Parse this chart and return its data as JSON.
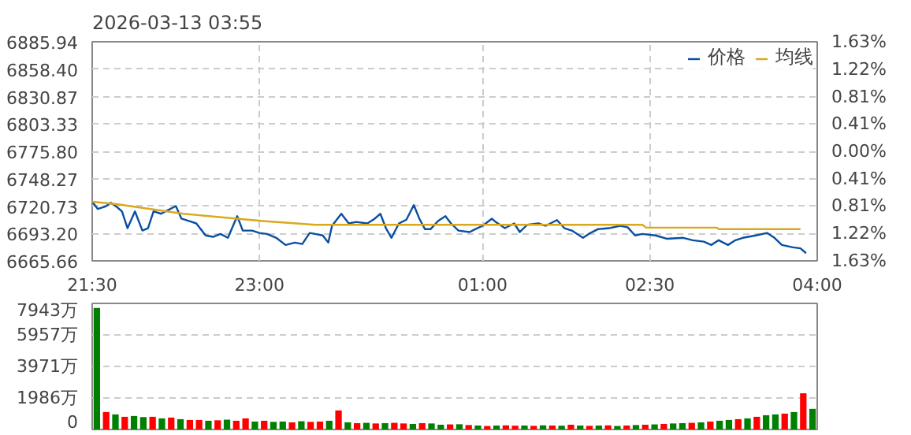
{
  "chart_data": [
    {
      "type": "line",
      "title": "2026-03-13 03:55",
      "legend": "top right",
      "grid": true,
      "line_style": "solid",
      "marker": "none",
      "xlim": [
        "2026-03-12T21:30",
        "2026-03-13T04:00"
      ],
      "xticks": [
        {
          "value": "2026-03-12T21:30",
          "label": "21:30"
        },
        {
          "value": "2026-03-12T23:00",
          "label": "23:00"
        },
        {
          "value": "2026-03-13T01:00",
          "label": "01:00"
        },
        {
          "value": "2026-03-13T02:30",
          "label": "02:30"
        },
        {
          "value": "2026-03-13T04:00",
          "label": "04:00"
        }
      ],
      "ylim": [
        6665.66,
        6885.94
      ],
      "yticks": [
        6665.66,
        {
          "value": 6693.2,
          "label": "6693.20"
        },
        6720.73,
        6748.27,
        {
          "value": 6775.8,
          "label": "6775.80"
        },
        6803.33,
        6830.87,
        {
          "value": 6858.4,
          "label": "6858.40"
        },
        6885.94
      ],
      "y2lim": [
        -1.63,
        1.63
      ],
      "y2ticks": [
        {
          "value": -1.63,
          "label": "1.63%"
        },
        {
          "value": -1.22,
          "label": "1.22%"
        },
        {
          "value": -0.81,
          "label": "0.81%"
        },
        {
          "value": -0.41,
          "label": "0.41%"
        },
        {
          "value": 0,
          "label": "0.00%"
        },
        {
          "value": 0.41,
          "label": "0.41%"
        },
        {
          "value": 0.81,
          "label": "0.81%"
        },
        {
          "value": 1.22,
          "label": "1.22%"
        },
        {
          "value": 1.63,
          "label": "1.63%"
        }
      ],
      "series": [
        {
          "name": "价格",
          "color": "#0a4fa0",
          "x": [
            "2026-03-12T21:30",
            "2026-03-12T21:33",
            "2026-03-12T21:37",
            "2026-03-12T21:40",
            "2026-03-12T21:43",
            "2026-03-12T21:46",
            "2026-03-12T21:49",
            "2026-03-12T21:53",
            "2026-03-12T21:57",
            "2026-03-12T22:00",
            "2026-03-12T22:03",
            "2026-03-12T22:07",
            "2026-03-12T22:11",
            "2026-03-12T22:15",
            "2026-03-12T22:18",
            "2026-03-12T22:22",
            "2026-03-12T22:26",
            "2026-03-12T22:31",
            "2026-03-12T22:35",
            "2026-03-12T22:39",
            "2026-03-12T22:43",
            "2026-03-12T22:48",
            "2026-03-12T22:51",
            "2026-03-12T22:56",
            "2026-03-12T23:00",
            "2026-03-12T23:04",
            "2026-03-12T23:09",
            "2026-03-12T23:14",
            "2026-03-12T23:19",
            "2026-03-12T23:23",
            "2026-03-12T23:27",
            "2026-03-12T23:30",
            "2026-03-12T23:34",
            "2026-03-12T23:37",
            "2026-03-12T23:39",
            "2026-03-12T23:44",
            "2026-03-12T23:48",
            "2026-03-12T23:52",
            "2026-03-12T23:58",
            "2026-03-13T00:02",
            "2026-03-13T00:05",
            "2026-03-13T00:08",
            "2026-03-13T00:11",
            "2026-03-13T00:15",
            "2026-03-13T00:19",
            "2026-03-13T00:23",
            "2026-03-13T00:26",
            "2026-03-13T00:29",
            "2026-03-13T00:32",
            "2026-03-13T00:36",
            "2026-03-13T00:40",
            "2026-03-13T00:43",
            "2026-03-13T00:47",
            "2026-03-13T00:53",
            "2026-03-13T00:56",
            "2026-03-13T01:00",
            "2026-03-13T01:05",
            "2026-03-13T01:07",
            "2026-03-13T01:12",
            "2026-03-13T01:17",
            "2026-03-13T01:20",
            "2026-03-13T01:24",
            "2026-03-13T01:30",
            "2026-03-13T01:34",
            "2026-03-13T01:40",
            "2026-03-13T01:44",
            "2026-03-13T01:48",
            "2026-03-13T01:54",
            "2026-03-13T01:58",
            "2026-03-13T02:02",
            "2026-03-13T02:08",
            "2026-03-13T02:14",
            "2026-03-13T02:18",
            "2026-03-13T02:22",
            "2026-03-13T02:26",
            "2026-03-13T02:33",
            "2026-03-13T02:39",
            "2026-03-13T02:48",
            "2026-03-13T02:53",
            "2026-03-13T02:59",
            "2026-03-13T03:03",
            "2026-03-13T03:07",
            "2026-03-13T03:12",
            "2026-03-13T03:16",
            "2026-03-13T03:20",
            "2026-03-13T03:27",
            "2026-03-13T03:33",
            "2026-03-13T03:37",
            "2026-03-13T03:41",
            "2026-03-13T03:47",
            "2026-03-13T03:51",
            "2026-03-13T03:54"
          ],
          "values": [
            6725.1,
            6717.8,
            6720.2,
            6724.1,
            6720.2,
            6715.4,
            6698.5,
            6715.4,
            6696.1,
            6698.5,
            6715.4,
            6713.0,
            6716.9,
            6720.7,
            6708.1,
            6705.7,
            6703.3,
            6691.2,
            6689.8,
            6692.7,
            6688.8,
            6710.6,
            6696.1,
            6696.1,
            6693.7,
            6692.7,
            6688.8,
            6681.6,
            6684.0,
            6682.6,
            6693.7,
            6692.7,
            6691.2,
            6684.0,
            6700.9,
            6713.0,
            6703.3,
            6704.8,
            6703.3,
            6708.1,
            6713.0,
            6698.5,
            6688.8,
            6703.3,
            6707.1,
            6721.7,
            6708.1,
            6697.5,
            6697.5,
            6705.7,
            6710.6,
            6703.3,
            6696.1,
            6694.6,
            6697.5,
            6700.9,
            6708.1,
            6704.8,
            6698.5,
            6703.3,
            6694.6,
            6701.9,
            6703.3,
            6700.9,
            6706.7,
            6698.5,
            6696.1,
            6688.8,
            6693.7,
            6697.5,
            6698.5,
            6700.9,
            6699.4,
            6691.2,
            6692.7,
            6691.2,
            6687.9,
            6688.8,
            6686.4,
            6685.0,
            6681.6,
            6686.4,
            6681.6,
            6686.4,
            6688.8,
            6691.2,
            6693.7,
            6688.8,
            6681.6,
            6679.2,
            6678.2,
            6673.4
          ]
        },
        {
          "name": "均线",
          "color": "#dba81c",
          "x": [
            "2026-03-12T21:30",
            "2026-03-12T21:43",
            "2026-03-12T22:19",
            "2026-03-12T23:02",
            "2026-03-12T23:30",
            "2026-03-13T02:26",
            "2026-03-13T02:28",
            "2026-03-13T03:06",
            "2026-03-13T03:07",
            "2026-03-13T03:51"
          ],
          "values": [
            6725.1,
            6722.7,
            6713.0,
            6705.7,
            6701.9,
            6701.9,
            6699.0,
            6699.0,
            6697.5,
            6697.5
          ]
        }
      ]
    },
    {
      "type": "bar",
      "grid": "y",
      "tick_labels": "y",
      "categories": [
        null,
        null,
        null,
        null,
        null,
        null,
        null,
        null,
        null,
        null,
        null,
        null,
        null,
        null,
        null,
        null,
        null,
        null,
        null,
        null,
        null,
        null,
        null,
        null,
        null,
        null,
        null,
        null,
        null,
        null,
        null,
        null,
        null,
        null,
        null,
        null,
        null,
        null,
        null,
        null,
        null,
        null,
        null,
        null,
        null,
        null,
        null,
        null,
        null,
        null,
        null,
        null,
        null,
        null,
        null,
        null,
        null,
        null,
        null,
        null,
        null,
        null,
        null,
        null,
        null,
        null,
        null,
        null,
        null,
        null,
        null,
        null,
        null,
        null,
        null,
        null,
        null,
        null
      ],
      "ylim": [
        0,
        7943
      ],
      "yticks": [
        {
          "value": 0,
          "label": "0"
        },
        {
          "value": 1986,
          "label": "1986万"
        },
        {
          "value": 3971,
          "label": "3971万"
        },
        {
          "value": 5957,
          "label": "5957万"
        },
        {
          "value": 7943,
          "label": "7943万"
        }
      ],
      "values": [
        7660,
        1100,
        950,
        800,
        850,
        780,
        800,
        700,
        750,
        650,
        600,
        600,
        550,
        580,
        620,
        550,
        700,
        500,
        550,
        480,
        500,
        450,
        520,
        480,
        500,
        550,
        1200,
        450,
        400,
        420,
        380,
        400,
        420,
        380,
        350,
        400,
        380,
        300,
        320,
        330,
        280,
        250,
        220,
        250,
        260,
        240,
        250,
        230,
        260,
        250,
        240,
        300,
        250,
        230,
        250,
        260,
        220,
        250,
        280,
        300,
        320,
        350,
        380,
        400,
        420,
        450,
        500,
        550,
        600,
        650,
        700,
        800,
        900,
        950,
        1000,
        1100,
        2280,
        1300
      ],
      "colors": [
        "#008000",
        "#ff0000",
        "#008000",
        "#ff0000",
        "#008000",
        "#008000",
        "#ff0000",
        "#008000",
        "#ff0000",
        "#008000",
        "#ff0000",
        "#ff0000",
        "#008000",
        "#ff0000",
        "#008000",
        "#ff0000",
        "#ff0000",
        "#008000",
        "#ff0000",
        "#008000",
        "#008000",
        "#ff0000",
        "#008000",
        "#ff0000",
        "#ff0000",
        "#008000",
        "#ff0000",
        "#008000",
        "#ff0000",
        "#008000",
        "#ff0000",
        "#008000",
        "#ff0000",
        "#ff0000",
        "#008000",
        "#ff0000",
        "#008000",
        "#008000",
        "#ff0000",
        "#008000",
        "#ff0000",
        "#008000",
        "#ff0000",
        "#008000",
        "#ff0000",
        "#ff0000",
        "#008000",
        "#ff0000",
        "#008000",
        "#ff0000",
        "#008000",
        "#ff0000",
        "#008000",
        "#ff0000",
        "#008000",
        "#ff0000",
        "#008000",
        "#ff0000",
        "#008000",
        "#ff0000",
        "#008000",
        "#ff0000",
        "#008000",
        "#008000",
        "#ff0000",
        "#008000",
        "#ff0000",
        "#008000",
        "#008000",
        "#ff0000",
        "#008000",
        "#ff0000",
        "#008000",
        "#008000",
        "#ff0000",
        "#008000",
        "#ff0000",
        "#008000"
      ]
    }
  ]
}
